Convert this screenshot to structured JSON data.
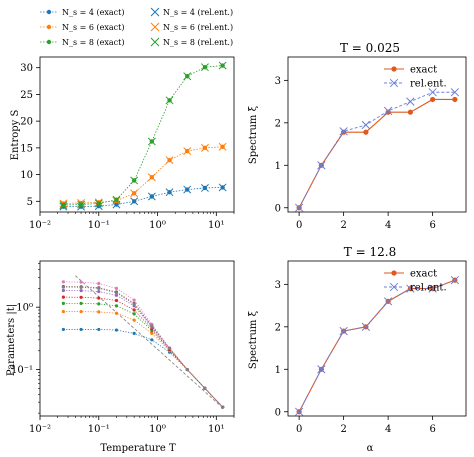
{
  "colors": {
    "blue": "#1f77b4",
    "orange": "#ff7f0e",
    "green": "#2ca02c",
    "red": "#d62728",
    "purple": "#9467bd",
    "brown": "#8c564b",
    "pink": "#e377c2",
    "gray": "#7f7f7f",
    "exact": "#e2571e",
    "relent": "#6b7fd7",
    "bestfit": "#888888"
  },
  "chart_data": [
    {
      "id": "entropy",
      "type": "line",
      "ylabel": "Entropy S",
      "xscale": "log",
      "xlim": [
        0.01,
        20
      ],
      "ylim": [
        3,
        32
      ],
      "xticks": [
        "10⁻²",
        "10⁻¹",
        "10⁰",
        "10¹"
      ],
      "yticks": [
        5,
        10,
        15,
        20,
        25,
        30
      ],
      "legend": [
        {
          "label": "N_s = 4 (exact)",
          "color": "#1f77b4",
          "marker": "dot"
        },
        {
          "label": "N_s = 6 (exact)",
          "color": "#ff7f0e",
          "marker": "dot"
        },
        {
          "label": "N_s = 8 (exact)",
          "color": "#2ca02c",
          "marker": "dot"
        },
        {
          "label": "N_s = 4 (rel.ent.)",
          "color": "#1f77b4",
          "marker": "x"
        },
        {
          "label": "N_s = 6 (rel.ent.)",
          "color": "#ff7f0e",
          "marker": "x"
        },
        {
          "label": "N_s = 8 (rel.ent.)",
          "color": "#2ca02c",
          "marker": "x"
        }
      ],
      "x": [
        0.025,
        0.05,
        0.1,
        0.2,
        0.4,
        0.8,
        1.6,
        3.2,
        6.4,
        12.8
      ],
      "series": [
        {
          "name": "N_s = 4",
          "color": "#1f77b4",
          "values": [
            4.0,
            4.0,
            4.1,
            4.4,
            5.0,
            5.9,
            6.7,
            7.2,
            7.5,
            7.6
          ]
        },
        {
          "name": "N_s = 6",
          "color": "#ff7f0e",
          "values": [
            4.6,
            4.7,
            4.8,
            5.1,
            6.5,
            9.5,
            12.7,
            14.4,
            15.0,
            15.2
          ]
        },
        {
          "name": "N_s = 8",
          "color": "#2ca02c",
          "values": [
            4.3,
            4.4,
            4.6,
            5.3,
            8.9,
            16.2,
            23.9,
            28.4,
            30.1,
            30.4
          ]
        }
      ]
    },
    {
      "id": "spectrum_low",
      "type": "line",
      "title": "T = 0.025",
      "ylabel": "Spectrum ξ",
      "xlim": [
        -0.5,
        7.5
      ],
      "ylim": [
        -0.1,
        3.55
      ],
      "xticks": [
        0,
        2,
        4,
        6
      ],
      "yticks": [
        0,
        1,
        2,
        3
      ],
      "legend": [
        {
          "label": "exact",
          "color": "#e2571e",
          "marker": "dot"
        },
        {
          "label": "rel.ent.",
          "color": "#6b7fd7",
          "marker": "x"
        }
      ],
      "x": [
        0,
        1,
        2,
        3,
        4,
        5,
        6,
        7
      ],
      "series": [
        {
          "name": "exact",
          "color": "#e2571e",
          "values": [
            0,
            1.0,
            1.78,
            1.78,
            2.25,
            2.25,
            2.55,
            2.55
          ]
        },
        {
          "name": "rel.ent.",
          "color": "#6b7fd7",
          "values": [
            0,
            1.0,
            1.8,
            1.95,
            2.28,
            2.5,
            2.72,
            2.72
          ]
        }
      ]
    },
    {
      "id": "parameters",
      "type": "line",
      "ylabel": "Parameters |t|",
      "xlabel": "Temperature T",
      "xscale": "log",
      "yscale": "log",
      "xlim": [
        0.01,
        20
      ],
      "ylim": [
        0.018,
        5.5
      ],
      "xticks": [
        "10⁻²",
        "10⁻¹",
        "10⁰",
        "10¹"
      ],
      "yticks": [
        "10⁰",
        "10⁻¹"
      ],
      "x": [
        0.025,
        0.05,
        0.1,
        0.2,
        0.4,
        0.8,
        1.6,
        3.2,
        6.4,
        12.8
      ],
      "reference_line": {
        "x": [
          0.04,
          12.8
        ],
        "values": [
          3.2,
          0.0245
        ]
      },
      "series": [
        {
          "color": "#1f77b4",
          "values": [
            0.44,
            0.44,
            0.44,
            0.43,
            0.38,
            0.3,
            0.19,
            0.1,
            0.05,
            0.025
          ]
        },
        {
          "color": "#ff7f0e",
          "values": [
            0.85,
            0.85,
            0.84,
            0.8,
            0.62,
            0.38,
            0.2,
            0.1,
            0.05,
            0.025
          ]
        },
        {
          "color": "#2ca02c",
          "values": [
            1.15,
            1.15,
            1.13,
            1.05,
            0.78,
            0.42,
            0.21,
            0.1,
            0.05,
            0.025
          ]
        },
        {
          "color": "#d62728",
          "values": [
            1.45,
            1.44,
            1.4,
            1.28,
            0.9,
            0.45,
            0.21,
            0.1,
            0.05,
            0.025
          ]
        },
        {
          "color": "#9467bd",
          "values": [
            1.85,
            1.84,
            1.78,
            1.55,
            1.05,
            0.48,
            0.22,
            0.1,
            0.05,
            0.025
          ]
        },
        {
          "color": "#8c564b",
          "values": [
            2.15,
            2.13,
            2.05,
            1.75,
            1.15,
            0.5,
            0.22,
            0.1,
            0.05,
            0.025
          ]
        },
        {
          "color": "#e377c2",
          "values": [
            2.55,
            2.52,
            2.4,
            2.0,
            1.3,
            0.53,
            0.22,
            0.1,
            0.05,
            0.025
          ]
        },
        {
          "color": "#7f7f7f",
          "values": [
            2.1,
            2.08,
            2.0,
            1.7,
            1.12,
            0.5,
            0.22,
            0.1,
            0.05,
            0.025
          ]
        }
      ]
    },
    {
      "id": "spectrum_high",
      "type": "line",
      "title": "T = 12.8",
      "ylabel": "Spectrum ξ",
      "xlabel": "α",
      "xlim": [
        -0.5,
        7.5
      ],
      "ylim": [
        -0.1,
        3.55
      ],
      "xticks": [
        0,
        2,
        4,
        6
      ],
      "yticks": [
        0,
        1,
        2,
        3
      ],
      "legend": [
        {
          "label": "exact",
          "color": "#e2571e",
          "marker": "dot"
        },
        {
          "label": "rel.ent.",
          "color": "#6b7fd7",
          "marker": "x"
        }
      ],
      "x": [
        0,
        1,
        2,
        3,
        4,
        5,
        6,
        7
      ],
      "series": [
        {
          "name": "exact",
          "color": "#e2571e",
          "values": [
            0,
            1.0,
            1.9,
            2.0,
            2.6,
            2.9,
            2.9,
            3.1
          ]
        },
        {
          "name": "rel.ent.",
          "color": "#6b7fd7",
          "values": [
            0,
            1.0,
            1.9,
            2.0,
            2.6,
            2.9,
            2.9,
            3.1
          ]
        }
      ]
    }
  ]
}
